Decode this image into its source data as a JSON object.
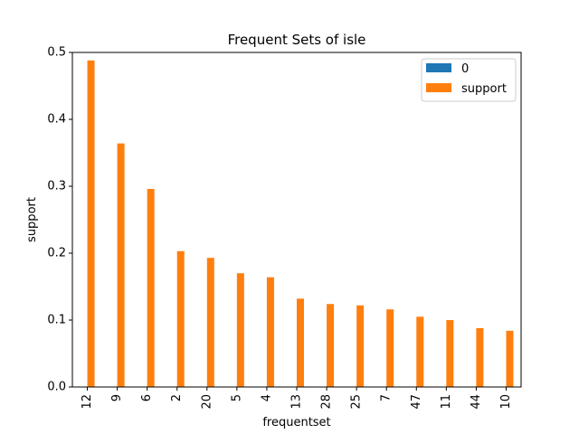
{
  "chart_data": {
    "type": "bar",
    "title": "Frequent Sets of isle",
    "xlabel": "frequentset",
    "ylabel": "support",
    "categories": [
      "12",
      "9",
      "6",
      "2",
      "20",
      "5",
      "4",
      "13",
      "28",
      "25",
      "7",
      "47",
      "11",
      "44",
      "10"
    ],
    "series": [
      {
        "name": "0",
        "color": "#1f77b4",
        "values": [
          0,
          0,
          0,
          0,
          0,
          0,
          0,
          0,
          0,
          0,
          0,
          0,
          0,
          0,
          0
        ]
      },
      {
        "name": "support",
        "color": "#ff7f0e",
        "values": [
          0.488,
          0.364,
          0.296,
          0.203,
          0.193,
          0.17,
          0.164,
          0.132,
          0.124,
          0.122,
          0.116,
          0.105,
          0.1,
          0.088,
          0.084
        ]
      }
    ],
    "ylim": [
      0,
      0.5
    ],
    "yticks": [
      "0.0",
      "0.1",
      "0.2",
      "0.3",
      "0.4",
      "0.5"
    ],
    "ytick_values": [
      0,
      0.1,
      0.2,
      0.3,
      0.4,
      0.5
    ],
    "grid": false,
    "legend": "top-right"
  }
}
